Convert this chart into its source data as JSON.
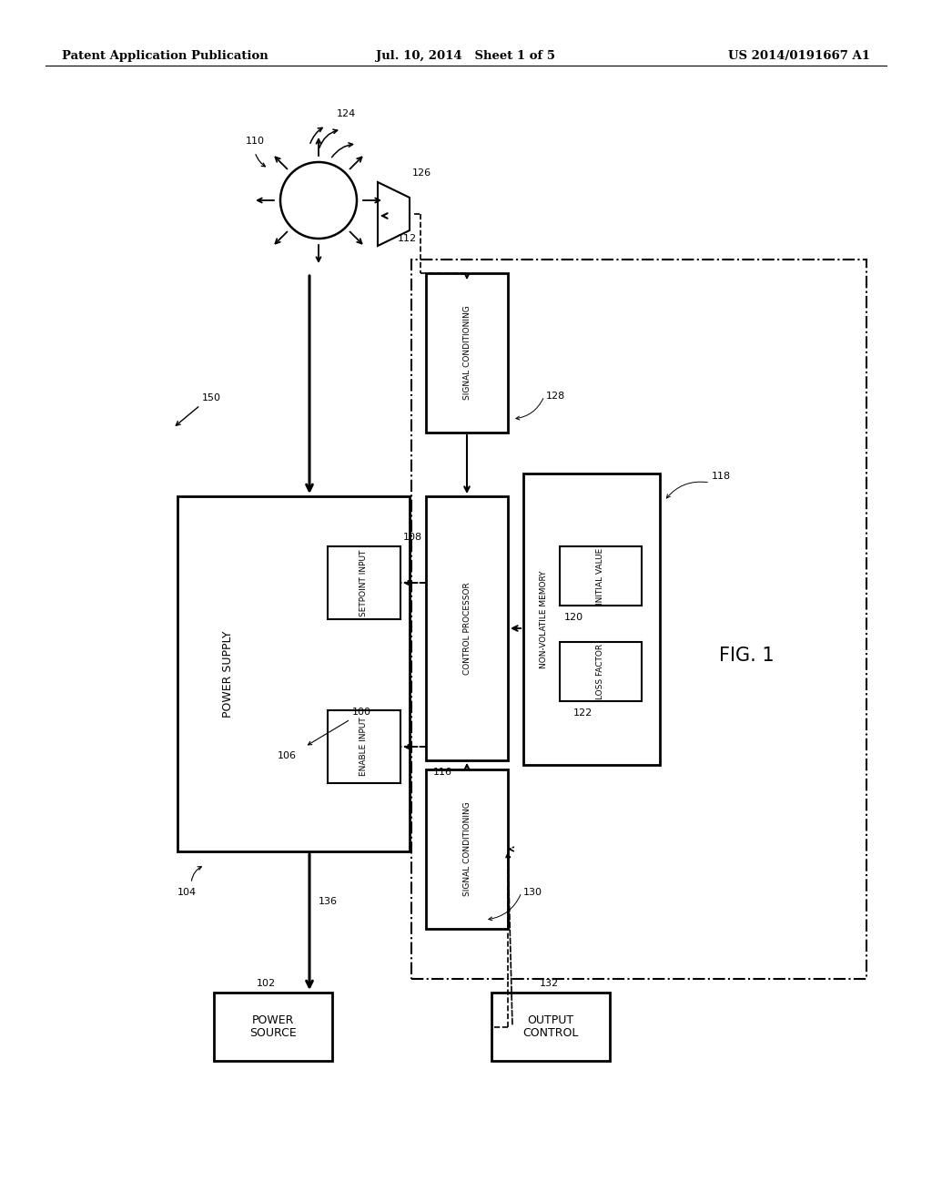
{
  "bg_color": "#ffffff",
  "header_left": "Patent Application Publication",
  "header_mid": "Jul. 10, 2014   Sheet 1 of 5",
  "header_right": "US 2014/0191667 A1",
  "fig_label": "FIG. 1"
}
